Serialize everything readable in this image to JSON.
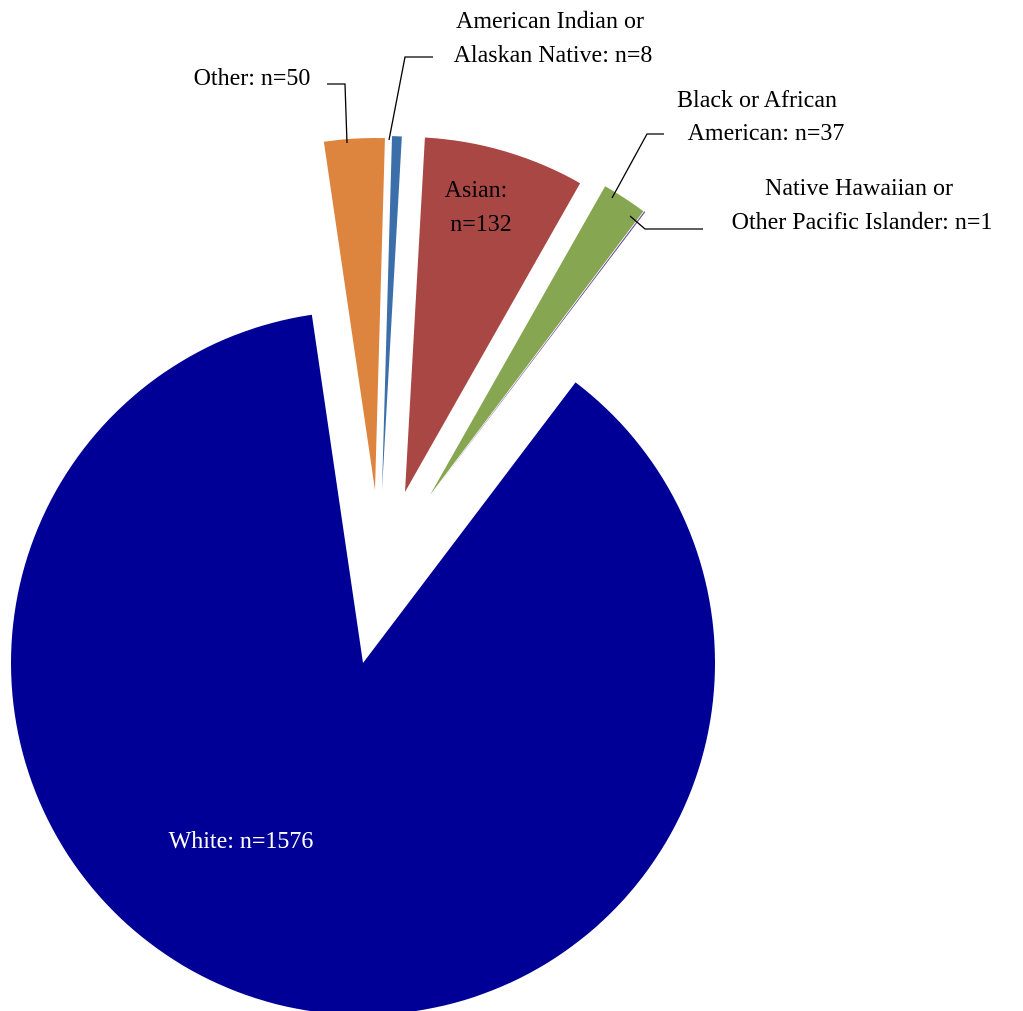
{
  "chart_data": {
    "type": "pie",
    "slices": [
      {
        "id": "american-indian",
        "label_lines": [
          "American Indian or",
          "Alaskan Native: n=8"
        ],
        "value": 8,
        "color": "#3c6faa",
        "label_color": "#000000"
      },
      {
        "id": "asian",
        "label_lines": [
          "Asian:",
          "n=132"
        ],
        "value": 132,
        "color": "#a94744",
        "label_color": "#000000"
      },
      {
        "id": "black",
        "label_lines": [
          "Black or African",
          "American: n=37"
        ],
        "value": 37,
        "color": "#86a651",
        "label_color": "#000000"
      },
      {
        "id": "native-hawaiian",
        "label_lines": [
          "Native Hawaiian or",
          "Other Pacific Islander: n=1"
        ],
        "value": 1,
        "color": "#6b5396",
        "label_color": "#000000"
      },
      {
        "id": "white",
        "label_lines": [
          "White: n=1576"
        ],
        "value": 1576,
        "color": "#000096",
        "label_color": "#ffffff"
      },
      {
        "id": "other",
        "label_lines": [
          "Other: n=50"
        ],
        "value": 50,
        "color": "#dd843e",
        "label_color": "#000000"
      }
    ],
    "exploded": true,
    "legend": "none"
  }
}
